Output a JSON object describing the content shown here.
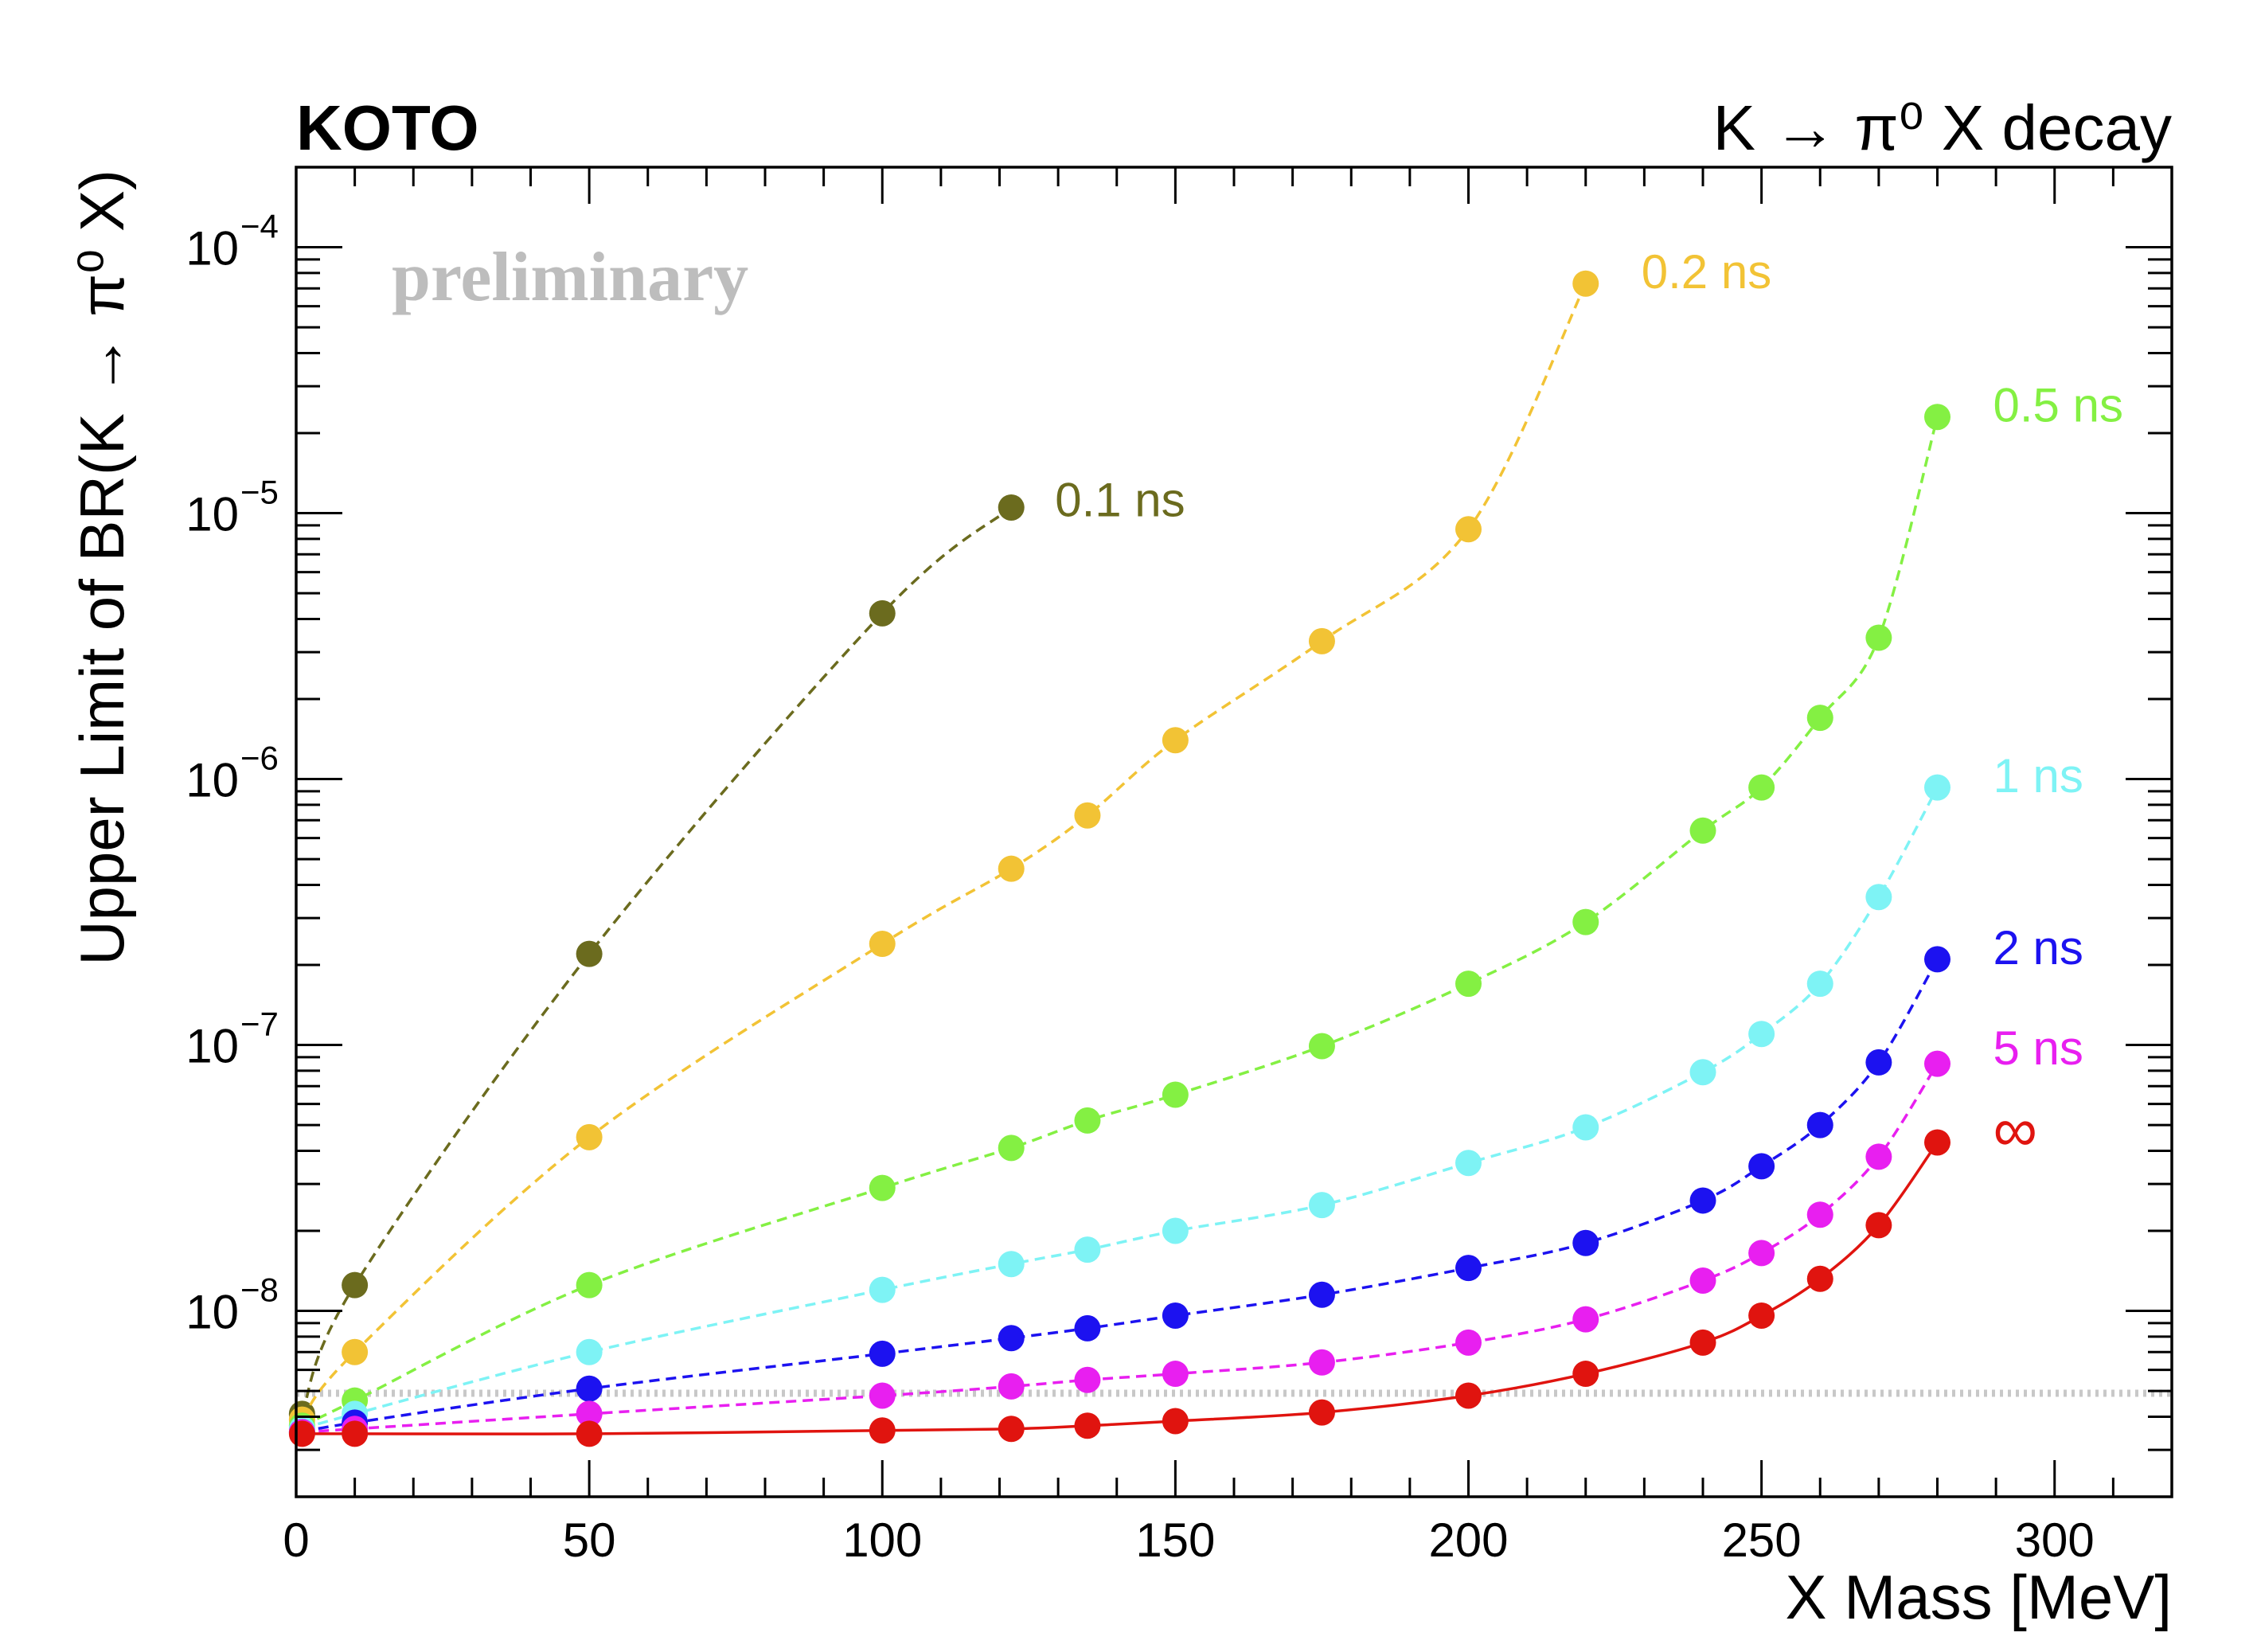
{
  "header": {
    "experiment": "KOTO",
    "process": "K → π⁰ X decay",
    "watermark": "preliminary"
  },
  "chart_data": {
    "type": "line",
    "title": "K → π⁰ X decay",
    "xlabel": "X Mass [MeV]",
    "ylabel": "Upper Limit of BR(K → π⁰ X)",
    "xlim": [
      0,
      320
    ],
    "ylim": [
      2e-09,
      0.0002
    ],
    "yscale": "log",
    "x_ticks": [
      0,
      50,
      100,
      150,
      200,
      250,
      300
    ],
    "y_ticks": [
      {
        "value": 1e-08,
        "base": "10",
        "exp": "−8"
      },
      {
        "value": 1e-07,
        "base": "10",
        "exp": "−7"
      },
      {
        "value": 1e-06,
        "base": "10",
        "exp": "−6"
      },
      {
        "value": 1e-05,
        "base": "10",
        "exp": "−5"
      },
      {
        "value": 0.0001,
        "base": "10",
        "exp": "−4"
      }
    ],
    "reference_line": {
      "value": 4.9e-09,
      "style": "dotted",
      "color": "#c8c8c8"
    },
    "series": [
      {
        "name": "0.1 ns",
        "label": "0.1 ns",
        "color": "#6b6b1e",
        "dash": true,
        "x": [
          1,
          10,
          50,
          100,
          122
        ],
        "y": [
          4.1e-09,
          1.25e-08,
          2.2e-07,
          4.2e-06,
          1.05e-05
        ]
      },
      {
        "name": "0.2 ns",
        "label": "0.2 ns",
        "color": "#f2c335",
        "dash": true,
        "x": [
          1,
          10,
          50,
          100,
          122,
          135,
          150,
          175,
          200,
          220
        ],
        "y": [
          3.9e-09,
          7e-09,
          4.5e-08,
          2.4e-07,
          4.6e-07,
          7.3e-07,
          1.4e-06,
          3.3e-06,
          8.7e-06,
          7.3e-05
        ]
      },
      {
        "name": "0.5 ns",
        "label": "0.5 ns",
        "color": "#84f043",
        "dash": true,
        "x": [
          1,
          10,
          50,
          100,
          122,
          135,
          150,
          175,
          200,
          220,
          240,
          250,
          260,
          270,
          280
        ],
        "y": [
          3.7e-09,
          4.6e-09,
          1.25e-08,
          2.9e-08,
          4.1e-08,
          5.2e-08,
          6.5e-08,
          9.9e-08,
          1.7e-07,
          2.9e-07,
          6.4e-07,
          9.3e-07,
          1.7e-06,
          3.4e-06,
          2.3e-05
        ]
      },
      {
        "name": "1 ns",
        "label": "1 ns",
        "color": "#7ef3f5",
        "dash": true,
        "x": [
          1,
          10,
          50,
          100,
          122,
          135,
          150,
          175,
          200,
          220,
          240,
          250,
          260,
          270,
          280
        ],
        "y": [
          3.6e-09,
          4.1e-09,
          7e-09,
          1.2e-08,
          1.5e-08,
          1.7e-08,
          2e-08,
          2.5e-08,
          3.6e-08,
          4.9e-08,
          7.9e-08,
          1.1e-07,
          1.7e-07,
          3.6e-07,
          9.3e-07
        ]
      },
      {
        "name": "2 ns",
        "label": "2 ns",
        "color": "#1c12f0",
        "dash": true,
        "x": [
          1,
          10,
          50,
          100,
          122,
          135,
          150,
          175,
          200,
          220,
          240,
          250,
          260,
          270,
          280
        ],
        "y": [
          3.5e-09,
          3.8e-09,
          5.1e-09,
          6.9e-09,
          7.9e-09,
          8.6e-09,
          9.6e-09,
          1.15e-08,
          1.45e-08,
          1.8e-08,
          2.6e-08,
          3.5e-08,
          5e-08,
          8.6e-08,
          2.1e-07
        ]
      },
      {
        "name": "5 ns",
        "label": "5 ns",
        "color": "#e81ff0",
        "dash": true,
        "x": [
          1,
          10,
          50,
          100,
          122,
          135,
          150,
          175,
          200,
          220,
          240,
          250,
          260,
          270,
          280
        ],
        "y": [
          3.5e-09,
          3.6e-09,
          4.1e-09,
          4.8e-09,
          5.2e-09,
          5.5e-09,
          5.8e-09,
          6.4e-09,
          7.6e-09,
          9.3e-09,
          1.3e-08,
          1.65e-08,
          2.3e-08,
          3.8e-08,
          8.5e-08
        ]
      },
      {
        "name": "∞",
        "label": "∞",
        "color": "#e0140f",
        "dash": false,
        "x": [
          1,
          10,
          50,
          100,
          122,
          135,
          150,
          175,
          200,
          220,
          240,
          250,
          260,
          270,
          280
        ],
        "y": [
          3.45e-09,
          3.45e-09,
          3.45e-09,
          3.55e-09,
          3.6e-09,
          3.7e-09,
          3.85e-09,
          4.15e-09,
          4.8e-09,
          5.8e-09,
          7.6e-09,
          9.6e-09,
          1.32e-08,
          2.1e-08,
          4.3e-08
        ]
      }
    ]
  }
}
